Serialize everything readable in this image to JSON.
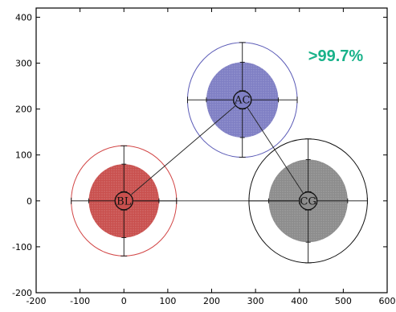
{
  "chart_data": {
    "type": "scatter",
    "title": "",
    "xlabel": "",
    "ylabel": "",
    "xlim": [
      -200,
      600
    ],
    "ylim": [
      -200,
      420
    ],
    "x_ticks": [
      -200,
      -100,
      0,
      100,
      200,
      300,
      400,
      500,
      600
    ],
    "y_ticks": [
      -200,
      -100,
      0,
      100,
      200,
      300,
      400
    ],
    "grid": false,
    "annotation": {
      "text": ">99.7%",
      "color": "#19b28a"
    },
    "points": [
      {
        "label": "BL",
        "x": 0,
        "y": 0,
        "inner_radius": 80,
        "outer_radius": 120,
        "x_err": 20,
        "y_err": 20,
        "fill_color": "#c9504e",
        "ring_color": "#d24646"
      },
      {
        "label": "AC",
        "x": 270,
        "y": 220,
        "inner_radius": 82,
        "outer_radius": 125,
        "x_err": 20,
        "y_err": 20,
        "fill_color": "#7f7fc4",
        "ring_color": "#5a5ab6"
      },
      {
        "label": "CG",
        "x": 420,
        "y": 0,
        "inner_radius": 90,
        "outer_radius": 135,
        "x_err": 20,
        "y_err": 20,
        "fill_color": "#8c8c8c",
        "ring_color": "#111111"
      }
    ],
    "connections": [
      {
        "from": "BL",
        "to": "AC"
      },
      {
        "from": "AC",
        "to": "CG"
      },
      {
        "from": "BL",
        "to": "CG"
      }
    ]
  }
}
